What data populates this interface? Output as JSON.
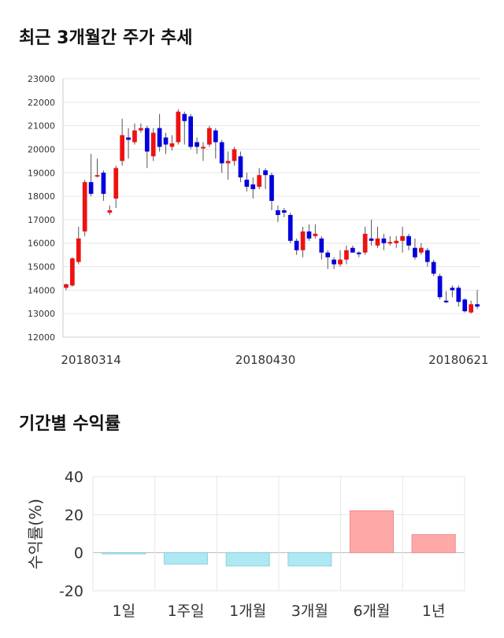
{
  "candle_title": "최근 3개월간 주가 추세",
  "returns_title": "기간별 수익률",
  "chart_data": [
    {
      "type": "candlestick",
      "ylim": [
        12000,
        23000
      ],
      "yticks": [
        12000,
        13000,
        14000,
        15000,
        16000,
        17000,
        18000,
        19000,
        20000,
        21000,
        22000,
        23000
      ],
      "xtick_labels": [
        {
          "index": 4,
          "label": "20180314"
        },
        {
          "index": 32,
          "label": "20180430"
        },
        {
          "index": 63,
          "label": "20180621"
        }
      ],
      "up_color": "#ee1111",
      "down_color": "#0000dd",
      "candles": [
        [
          14100,
          14250,
          14000,
          14280
        ],
        [
          14200,
          15350,
          14150,
          15400
        ],
        [
          15200,
          16200,
          15100,
          16700
        ],
        [
          16500,
          18600,
          16300,
          18700
        ],
        [
          18600,
          18100,
          18000,
          19800
        ],
        [
          18900,
          18900,
          18800,
          19600
        ],
        [
          19000,
          18100,
          17800,
          19100
        ],
        [
          17300,
          17400,
          17200,
          17600
        ],
        [
          17900,
          19200,
          17500,
          19300
        ],
        [
          19500,
          20600,
          19300,
          21300
        ],
        [
          20500,
          20400,
          19600,
          20900
        ],
        [
          20300,
          20800,
          20200,
          21100
        ],
        [
          20800,
          20900,
          20700,
          21100
        ],
        [
          20900,
          19900,
          19200,
          21000
        ],
        [
          19700,
          20700,
          19500,
          20900
        ],
        [
          20900,
          20100,
          19900,
          21500
        ],
        [
          20500,
          20200,
          19800,
          20700
        ],
        [
          20100,
          20250,
          19950,
          20600
        ],
        [
          20300,
          21600,
          20200,
          21700
        ],
        [
          21500,
          21200,
          20200,
          21600
        ],
        [
          21400,
          20100,
          20000,
          21500
        ],
        [
          20300,
          20100,
          19800,
          20500
        ],
        [
          20100,
          20100,
          19500,
          20300
        ],
        [
          20200,
          20900,
          20100,
          21000
        ],
        [
          20800,
          20300,
          19600,
          20900
        ],
        [
          20300,
          19400,
          19000,
          20400
        ],
        [
          19400,
          19500,
          18700,
          19900
        ],
        [
          19500,
          20000,
          19300,
          20100
        ],
        [
          19700,
          18800,
          18600,
          19900
        ],
        [
          18700,
          18400,
          18200,
          19000
        ],
        [
          18500,
          18300,
          17900,
          18800
        ],
        [
          18400,
          18900,
          18300,
          19200
        ],
        [
          19100,
          18900,
          18300,
          19200
        ],
        [
          18900,
          17800,
          17400,
          19000
        ],
        [
          17400,
          17200,
          16900,
          17600
        ],
        [
          17400,
          17300,
          17100,
          17500
        ],
        [
          17200,
          16100,
          16000,
          17300
        ],
        [
          16100,
          15700,
          15500,
          16200
        ],
        [
          15700,
          16500,
          15400,
          16700
        ],
        [
          16500,
          16200,
          16100,
          16800
        ],
        [
          16300,
          16400,
          16200,
          16800
        ],
        [
          16200,
          15600,
          15300,
          16300
        ],
        [
          15600,
          15400,
          14900,
          15700
        ],
        [
          15300,
          15100,
          14900,
          15400
        ],
        [
          15100,
          15300,
          15000,
          15700
        ],
        [
          15300,
          15700,
          15100,
          15900
        ],
        [
          15800,
          15600,
          15600,
          15900
        ],
        [
          15600,
          15550,
          15400,
          15650
        ],
        [
          15600,
          16400,
          15500,
          16700
        ],
        [
          16200,
          16100,
          15900,
          17000
        ],
        [
          15900,
          16200,
          15800,
          16700
        ],
        [
          16200,
          16000,
          15700,
          16400
        ],
        [
          16000,
          16050,
          15900,
          16300
        ],
        [
          16000,
          16100,
          15800,
          16300
        ],
        [
          16100,
          16300,
          15600,
          16700
        ],
        [
          16300,
          15900,
          15700,
          16400
        ],
        [
          15800,
          15400,
          15300,
          16200
        ],
        [
          15600,
          15800,
          15500,
          16000
        ],
        [
          15700,
          15200,
          15000,
          15800
        ],
        [
          15200,
          14700,
          14600,
          15300
        ],
        [
          14600,
          13700,
          13600,
          14700
        ],
        [
          13550,
          13500,
          13450,
          13950
        ],
        [
          14100,
          14000,
          13700,
          14200
        ],
        [
          14100,
          13500,
          13300,
          14200
        ],
        [
          13600,
          13100,
          13050,
          13650
        ],
        [
          13050,
          13400,
          13000,
          13550
        ],
        [
          13400,
          13300,
          13200,
          14000
        ]
      ]
    },
    {
      "type": "bar",
      "ylabel": "수익률(%)",
      "ylim": [
        -20,
        40
      ],
      "yticks": [
        -20,
        0,
        20,
        40
      ],
      "categories": [
        "1일",
        "1주일",
        "1개월",
        "3개월",
        "6개월",
        "1년"
      ],
      "values": [
        -0.5,
        -6.0,
        -7.0,
        -7.0,
        22.0,
        9.5
      ],
      "positive_color": "#ffa8a8",
      "negative_color": "#aee8f2"
    }
  ]
}
